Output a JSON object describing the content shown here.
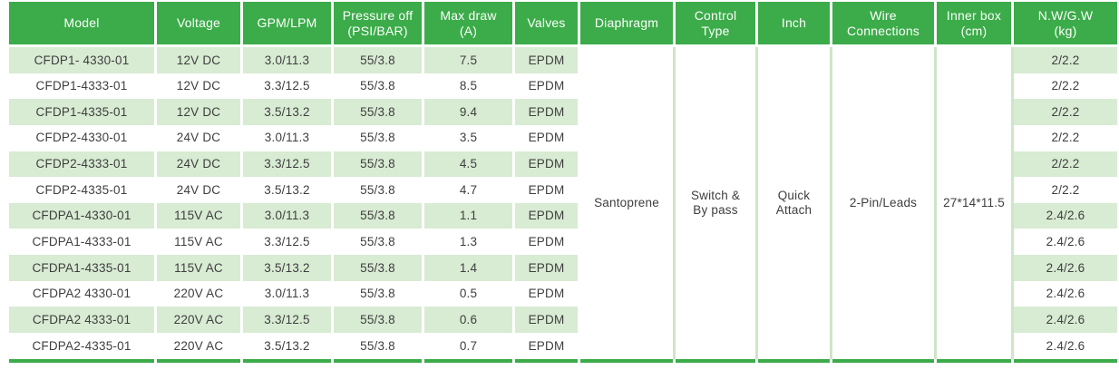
{
  "colors": {
    "header_bg": "#3bac49",
    "header_text": "#ffffff",
    "row_stripe_bg": "#d8ebd3",
    "merged_divider": "#cde6c7",
    "bottom_border": "#3bac49",
    "body_text": "#3e3e3e"
  },
  "table": {
    "headers": [
      "Model",
      "Voltage",
      "GPM/LPM",
      "Pressure off\n(PSI/BAR)",
      "Max draw\n(A)",
      "Valves",
      "Diaphragm",
      "Control\nType",
      "Inch",
      "Wire\nConnections",
      "Inner box\n(cm)",
      "N.W/G.W\n(kg)"
    ],
    "rows": [
      {
        "model": "CFDP1- 4330-01",
        "voltage": "12V DC",
        "gpm_lpm": "3.0/11.3",
        "pressure_off": "55/3.8",
        "max_draw": "7.5",
        "valves": "EPDM",
        "nw_gw": "2/2.2"
      },
      {
        "model": "CFDP1-4333-01",
        "voltage": "12V DC",
        "gpm_lpm": "3.3/12.5",
        "pressure_off": "55/3.8",
        "max_draw": "8.5",
        "valves": "EPDM",
        "nw_gw": "2/2.2"
      },
      {
        "model": "CFDP1-4335-01",
        "voltage": "12V DC",
        "gpm_lpm": "3.5/13.2",
        "pressure_off": "55/3.8",
        "max_draw": "9.4",
        "valves": "EPDM",
        "nw_gw": "2/2.2"
      },
      {
        "model": "CFDP2-4330-01",
        "voltage": "24V DC",
        "gpm_lpm": "3.0/11.3",
        "pressure_off": "55/3.8",
        "max_draw": "3.5",
        "valves": "EPDM",
        "nw_gw": "2/2.2"
      },
      {
        "model": "CFDP2-4333-01",
        "voltage": "24V DC",
        "gpm_lpm": "3.3/12.5",
        "pressure_off": "55/3.8",
        "max_draw": "4.5",
        "valves": "EPDM",
        "nw_gw": "2/2.2"
      },
      {
        "model": "CFDP2-4335-01",
        "voltage": "24V DC",
        "gpm_lpm": "3.5/13.2",
        "pressure_off": "55/3.8",
        "max_draw": "4.7",
        "valves": "EPDM",
        "nw_gw": "2/2.2"
      },
      {
        "model": "CFDPA1-4330-01",
        "voltage": "115V AC",
        "gpm_lpm": "3.0/11.3",
        "pressure_off": "55/3.8",
        "max_draw": "1.1",
        "valves": "EPDM",
        "nw_gw": "2.4/2.6"
      },
      {
        "model": "CFDPA1-4333-01",
        "voltage": "115V AC",
        "gpm_lpm": "3.3/12.5",
        "pressure_off": "55/3.8",
        "max_draw": "1.3",
        "valves": "EPDM",
        "nw_gw": "2.4/2.6"
      },
      {
        "model": "CFDPA1-4335-01",
        "voltage": "115V AC",
        "gpm_lpm": "3.5/13.2",
        "pressure_off": "55/3.8",
        "max_draw": "1.4",
        "valves": "EPDM",
        "nw_gw": "2.4/2.6"
      },
      {
        "model": "CFDPA2 4330-01",
        "voltage": "220V AC",
        "gpm_lpm": "3.0/11.3",
        "pressure_off": "55/3.8",
        "max_draw": "0.5",
        "valves": "EPDM",
        "nw_gw": "2.4/2.6"
      },
      {
        "model": "CFDPA2 4333-01",
        "voltage": "220V AC",
        "gpm_lpm": "3.3/12.5",
        "pressure_off": "55/3.8",
        "max_draw": "0.6",
        "valves": "EPDM",
        "nw_gw": "2.4/2.6"
      },
      {
        "model": "CFDPA2-4335-01",
        "voltage": "220V AC",
        "gpm_lpm": "3.5/13.2",
        "pressure_off": "55/3.8",
        "max_draw": "0.7",
        "valves": "EPDM",
        "nw_gw": "2.4/2.6"
      }
    ],
    "merged": {
      "diaphragm": "Santoprene",
      "control_type": "Switch &\nBy pass",
      "inch": "Quick\nAttach",
      "wire_connections": "2-Pin/Leads",
      "inner_box": "27*14*11.5"
    }
  }
}
